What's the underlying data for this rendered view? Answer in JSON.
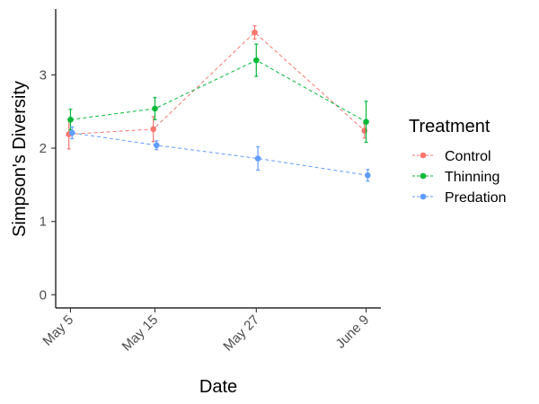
{
  "chart_data": {
    "type": "line",
    "xlabel": "Date",
    "ylabel": "Simpson's Diversity",
    "categories": [
      "May 5",
      "May 15",
      "May 27",
      "June 9"
    ],
    "x_numeric": [
      5,
      15,
      27,
      40
    ],
    "ylim": [
      -0.18,
      3.9
    ],
    "yticks": [
      0,
      1,
      2,
      3
    ],
    "ytick_labels": [
      "0",
      "1",
      "2",
      "3"
    ],
    "grid": false,
    "legend": {
      "title": "Treatment",
      "position": "right"
    },
    "series": [
      {
        "name": "Control",
        "color": "#F8766D",
        "values": [
          2.19,
          2.26,
          3.58,
          2.24
        ],
        "errors": [
          0.2,
          0.17,
          0.09,
          0.1
        ]
      },
      {
        "name": "Thinning",
        "color": "#00BA38",
        "values": [
          2.39,
          2.54,
          3.2,
          2.36
        ],
        "errors": [
          0.14,
          0.15,
          0.22,
          0.28
        ]
      },
      {
        "name": "Predation",
        "color": "#619CFF",
        "values": [
          2.21,
          2.04,
          1.86,
          1.63
        ],
        "errors": [
          0.08,
          0.06,
          0.16,
          0.08
        ]
      }
    ]
  }
}
